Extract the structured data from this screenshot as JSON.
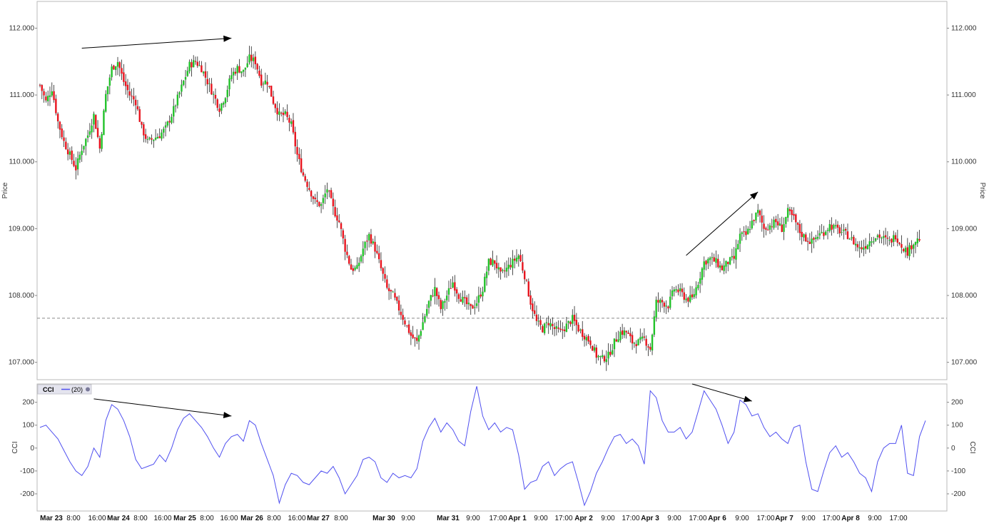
{
  "colors": {
    "up": "#22c22a",
    "down": "#e8141e",
    "cci": "#5050f0",
    "wick": "#222222",
    "arrow": "#000000",
    "dashed": "#8a8a8a",
    "frame": "#b8b8b8"
  },
  "price_axis_label": "Price",
  "cci_axis_label": "CCI",
  "cci_legend": {
    "title": "CCI",
    "period": "(20)"
  },
  "chart_data": [
    {
      "type": "candlestick",
      "name": "price",
      "ylabel": "Price",
      "ylim": [
        106.74,
        112.4
      ],
      "yticks": [
        107.0,
        108.0,
        109.0,
        110.0,
        111.0,
        112.0
      ],
      "ytick_labels": [
        "107.000",
        "108.000",
        "109.000",
        "110.000",
        "111.000",
        "112.000"
      ],
      "horizontal_line": 107.66,
      "x_labels": [
        {
          "text": "Mar 23",
          "bold": true
        },
        {
          "text": "8:00",
          "bold": false
        },
        {
          "text": "16:00",
          "bold": false
        },
        {
          "text": "Mar 24",
          "bold": true
        },
        {
          "text": "8:00",
          "bold": false
        },
        {
          "text": "16:00",
          "bold": false
        },
        {
          "text": "Mar 25",
          "bold": true
        },
        {
          "text": "8:00",
          "bold": false
        },
        {
          "text": "16:00",
          "bold": false
        },
        {
          "text": "Mar 26",
          "bold": true
        },
        {
          "text": "8:00",
          "bold": false
        },
        {
          "text": "16:00",
          "bold": false
        },
        {
          "text": "Mar 27",
          "bold": true
        },
        {
          "text": "8:00",
          "bold": false
        },
        {
          "text": "Mar 30",
          "bold": true
        },
        {
          "text": "9:00",
          "bold": false
        },
        {
          "text": "Mar 31",
          "bold": true
        },
        {
          "text": "9:00",
          "bold": false
        },
        {
          "text": "17:00",
          "bold": false
        },
        {
          "text": "Apr 1",
          "bold": true
        },
        {
          "text": "9:00",
          "bold": false
        },
        {
          "text": "17:00",
          "bold": false
        },
        {
          "text": "Apr 2",
          "bold": true
        },
        {
          "text": "9:00",
          "bold": false
        },
        {
          "text": "17:00",
          "bold": false
        },
        {
          "text": "Apr 3",
          "bold": true
        },
        {
          "text": "9:00",
          "bold": false
        },
        {
          "text": "17:00",
          "bold": false
        },
        {
          "text": "Apr 6",
          "bold": true
        },
        {
          "text": "9:00",
          "bold": false
        },
        {
          "text": "17:00",
          "bold": false
        },
        {
          "text": "Apr 7",
          "bold": true
        },
        {
          "text": "9:00",
          "bold": false
        },
        {
          "text": "17:00",
          "bold": false
        },
        {
          "text": "Apr 8",
          "bold": true
        },
        {
          "text": "9:00",
          "bold": false
        },
        {
          "text": "17:00",
          "bold": false
        }
      ],
      "close_path": [
        [
          0,
          111.15
        ],
        [
          3,
          110.9
        ],
        [
          6,
          111.1
        ],
        [
          9,
          110.6
        ],
        [
          12,
          110.3
        ],
        [
          15,
          110.1
        ],
        [
          18,
          109.9
        ],
        [
          21,
          110.2
        ],
        [
          24,
          110.4
        ],
        [
          27,
          110.7
        ],
        [
          30,
          110.2
        ],
        [
          33,
          111.0
        ],
        [
          36,
          111.4
        ],
        [
          39,
          111.5
        ],
        [
          42,
          111.2
        ],
        [
          45,
          111.0
        ],
        [
          48,
          110.9
        ],
        [
          51,
          110.5
        ],
        [
          54,
          110.3
        ],
        [
          57,
          110.35
        ],
        [
          60,
          110.4
        ],
        [
          63,
          110.5
        ],
        [
          66,
          110.7
        ],
        [
          69,
          110.95
        ],
        [
          72,
          111.2
        ],
        [
          75,
          111.45
        ],
        [
          78,
          111.5
        ],
        [
          81,
          111.4
        ],
        [
          84,
          111.2
        ],
        [
          87,
          111.0
        ],
        [
          90,
          110.8
        ],
        [
          93,
          111.0
        ],
        [
          96,
          111.3
        ],
        [
          99,
          111.4
        ],
        [
          102,
          111.35
        ],
        [
          105,
          111.55
        ],
        [
          108,
          111.5
        ],
        [
          111,
          111.2
        ],
        [
          114,
          111.2
        ],
        [
          117,
          110.9
        ],
        [
          120,
          110.7
        ],
        [
          123,
          110.7
        ],
        [
          126,
          110.55
        ],
        [
          129,
          110.1
        ],
        [
          132,
          109.8
        ],
        [
          135,
          109.6
        ],
        [
          138,
          109.4
        ],
        [
          141,
          109.35
        ],
        [
          144,
          109.6
        ],
        [
          147,
          109.3
        ],
        [
          150,
          109.1
        ],
        [
          153,
          108.7
        ],
        [
          156,
          108.4
        ],
        [
          159,
          108.4
        ],
        [
          162,
          108.7
        ],
        [
          165,
          108.9
        ],
        [
          168,
          108.7
        ],
        [
          171,
          108.4
        ],
        [
          174,
          108.1
        ],
        [
          177,
          108.0
        ],
        [
          180,
          107.8
        ],
        [
          183,
          107.6
        ],
        [
          186,
          107.4
        ],
        [
          189,
          107.3
        ],
        [
          192,
          107.6
        ],
        [
          195,
          107.9
        ],
        [
          198,
          108.1
        ],
        [
          201,
          107.8
        ],
        [
          204,
          108.0
        ],
        [
          207,
          108.2
        ],
        [
          210,
          108.0
        ],
        [
          213,
          107.9
        ],
        [
          216,
          107.8
        ],
        [
          219,
          107.9
        ],
        [
          222,
          108.1
        ],
        [
          225,
          108.5
        ],
        [
          228,
          108.5
        ],
        [
          231,
          108.3
        ],
        [
          234,
          108.4
        ],
        [
          237,
          108.5
        ],
        [
          240,
          108.6
        ],
        [
          243,
          108.3
        ],
        [
          246,
          107.9
        ],
        [
          249,
          107.6
        ],
        [
          252,
          107.5
        ],
        [
          255,
          107.6
        ],
        [
          258,
          107.5
        ],
        [
          261,
          107.45
        ],
        [
          264,
          107.55
        ],
        [
          267,
          107.65
        ],
        [
          270,
          107.5
        ],
        [
          273,
          107.4
        ],
        [
          276,
          107.3
        ],
        [
          279,
          107.1
        ],
        [
          282,
          107.05
        ],
        [
          285,
          107.1
        ],
        [
          288,
          107.3
        ],
        [
          291,
          107.45
        ],
        [
          294,
          107.45
        ],
        [
          297,
          107.3
        ],
        [
          300,
          107.3
        ],
        [
          303,
          107.35
        ],
        [
          306,
          107.2
        ],
        [
          309,
          107.9
        ],
        [
          312,
          107.9
        ],
        [
          315,
          107.85
        ],
        [
          318,
          108.1
        ],
        [
          321,
          108.05
        ],
        [
          324,
          107.95
        ],
        [
          327,
          107.95
        ],
        [
          330,
          108.2
        ],
        [
          333,
          108.5
        ],
        [
          336,
          108.55
        ],
        [
          339,
          108.5
        ],
        [
          342,
          108.4
        ],
        [
          345,
          108.5
        ],
        [
          348,
          108.55
        ],
        [
          351,
          108.9
        ],
        [
          354,
          108.9
        ],
        [
          357,
          109.1
        ],
        [
          360,
          109.25
        ],
        [
          363,
          109.0
        ],
        [
          366,
          109.05
        ],
        [
          369,
          109.1
        ],
        [
          372,
          109.0
        ],
        [
          375,
          109.25
        ],
        [
          378,
          109.15
        ],
        [
          381,
          108.95
        ],
        [
          384,
          108.85
        ],
        [
          387,
          108.8
        ],
        [
          390,
          108.9
        ],
        [
          393,
          108.95
        ],
        [
          396,
          109.05
        ],
        [
          399,
          109.0
        ],
        [
          402,
          108.95
        ],
        [
          405,
          108.9
        ],
        [
          408,
          108.8
        ],
        [
          411,
          108.7
        ],
        [
          414,
          108.75
        ],
        [
          417,
          108.85
        ],
        [
          420,
          108.9
        ],
        [
          423,
          108.85
        ],
        [
          426,
          108.8
        ],
        [
          429,
          108.9
        ],
        [
          432,
          108.75
        ],
        [
          435,
          108.65
        ],
        [
          438,
          108.8
        ],
        [
          441,
          108.85
        ]
      ],
      "arrows": [
        {
          "from": [
            21,
            111.7
          ],
          "to": [
            96,
            111.85
          ]
        },
        {
          "from": [
            324,
            108.6
          ],
          "to": [
            360,
            109.55
          ]
        }
      ]
    },
    {
      "type": "line",
      "name": "CCI",
      "series_name": "(20)",
      "ylabel": "CCI",
      "ylim": [
        -275,
        280
      ],
      "yticks": [
        -200,
        -100,
        0,
        100,
        200
      ],
      "ytick_labels": [
        "-200",
        "-100",
        "0",
        "100",
        "200"
      ],
      "points": [
        [
          0,
          90
        ],
        [
          3,
          100
        ],
        [
          6,
          70
        ],
        [
          9,
          40
        ],
        [
          12,
          -10
        ],
        [
          15,
          -60
        ],
        [
          18,
          -100
        ],
        [
          21,
          -120
        ],
        [
          24,
          -80
        ],
        [
          27,
          0
        ],
        [
          30,
          -40
        ],
        [
          33,
          120
        ],
        [
          36,
          190
        ],
        [
          39,
          170
        ],
        [
          42,
          120
        ],
        [
          45,
          50
        ],
        [
          48,
          -50
        ],
        [
          51,
          -90
        ],
        [
          54,
          -80
        ],
        [
          57,
          -70
        ],
        [
          60,
          -30
        ],
        [
          63,
          -60
        ],
        [
          66,
          0
        ],
        [
          69,
          80
        ],
        [
          72,
          130
        ],
        [
          75,
          150
        ],
        [
          78,
          120
        ],
        [
          81,
          90
        ],
        [
          84,
          50
        ],
        [
          87,
          0
        ],
        [
          90,
          -40
        ],
        [
          93,
          20
        ],
        [
          96,
          50
        ],
        [
          99,
          60
        ],
        [
          102,
          30
        ],
        [
          105,
          120
        ],
        [
          108,
          100
        ],
        [
          111,
          20
        ],
        [
          114,
          -50
        ],
        [
          117,
          -120
        ],
        [
          120,
          -240
        ],
        [
          123,
          -160
        ],
        [
          126,
          -110
        ],
        [
          129,
          -120
        ],
        [
          132,
          -150
        ],
        [
          135,
          -160
        ],
        [
          138,
          -130
        ],
        [
          141,
          -100
        ],
        [
          144,
          -110
        ],
        [
          147,
          -80
        ],
        [
          150,
          -130
        ],
        [
          153,
          -200
        ],
        [
          156,
          -160
        ],
        [
          159,
          -120
        ],
        [
          162,
          -50
        ],
        [
          165,
          -40
        ],
        [
          168,
          -60
        ],
        [
          171,
          -130
        ],
        [
          174,
          -150
        ],
        [
          177,
          -110
        ],
        [
          180,
          -130
        ],
        [
          183,
          -120
        ],
        [
          186,
          -130
        ],
        [
          189,
          -90
        ],
        [
          192,
          30
        ],
        [
          195,
          90
        ],
        [
          198,
          130
        ],
        [
          201,
          70
        ],
        [
          204,
          110
        ],
        [
          207,
          80
        ],
        [
          210,
          30
        ],
        [
          213,
          10
        ],
        [
          216,
          160
        ],
        [
          219,
          270
        ],
        [
          222,
          140
        ],
        [
          225,
          80
        ],
        [
          228,
          110
        ],
        [
          231,
          70
        ],
        [
          234,
          90
        ],
        [
          237,
          80
        ],
        [
          240,
          -30
        ],
        [
          243,
          -180
        ],
        [
          246,
          -150
        ],
        [
          249,
          -140
        ],
        [
          252,
          -80
        ],
        [
          255,
          -60
        ],
        [
          258,
          -120
        ],
        [
          261,
          -90
        ],
        [
          264,
          -70
        ],
        [
          267,
          -60
        ],
        [
          270,
          -150
        ],
        [
          273,
          -250
        ],
        [
          276,
          -190
        ],
        [
          279,
          -110
        ],
        [
          282,
          -60
        ],
        [
          285,
          0
        ],
        [
          288,
          50
        ],
        [
          291,
          60
        ],
        [
          294,
          20
        ],
        [
          297,
          40
        ],
        [
          300,
          10
        ],
        [
          303,
          -70
        ],
        [
          306,
          250
        ],
        [
          309,
          220
        ],
        [
          312,
          120
        ],
        [
          315,
          70
        ],
        [
          318,
          70
        ],
        [
          321,
          90
        ],
        [
          324,
          40
        ],
        [
          327,
          70
        ],
        [
          330,
          160
        ],
        [
          333,
          250
        ],
        [
          336,
          210
        ],
        [
          339,
          170
        ],
        [
          342,
          100
        ],
        [
          345,
          20
        ],
        [
          348,
          70
        ],
        [
          351,
          210
        ],
        [
          354,
          190
        ],
        [
          357,
          140
        ],
        [
          360,
          150
        ],
        [
          363,
          90
        ],
        [
          366,
          50
        ],
        [
          369,
          70
        ],
        [
          372,
          40
        ],
        [
          375,
          20
        ],
        [
          378,
          90
        ],
        [
          381,
          100
        ],
        [
          384,
          -60
        ],
        [
          387,
          -180
        ],
        [
          390,
          -190
        ],
        [
          393,
          -100
        ],
        [
          396,
          -20
        ],
        [
          399,
          10
        ],
        [
          402,
          -40
        ],
        [
          405,
          -20
        ],
        [
          408,
          -60
        ],
        [
          411,
          -110
        ],
        [
          414,
          -130
        ],
        [
          417,
          -190
        ],
        [
          420,
          -60
        ],
        [
          423,
          0
        ],
        [
          426,
          20
        ],
        [
          429,
          20
        ],
        [
          432,
          100
        ],
        [
          435,
          -110
        ],
        [
          438,
          -120
        ],
        [
          441,
          50
        ],
        [
          444,
          120
        ]
      ],
      "arrows": [
        {
          "from": [
            27,
            215
          ],
          "to": [
            96,
            140
          ]
        },
        {
          "from": [
            327,
            280
          ],
          "to": [
            357,
            205
          ]
        }
      ]
    }
  ]
}
